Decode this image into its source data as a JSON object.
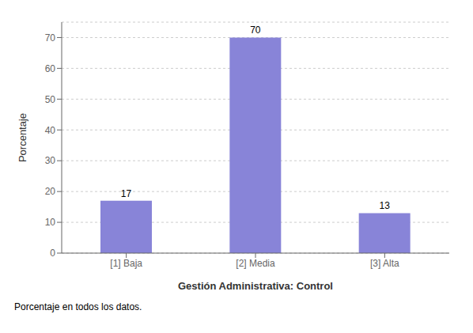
{
  "chart_data": {
    "type": "bar",
    "categories": [
      "[1] Baja",
      "[2] Media",
      "[3] Alta"
    ],
    "values": [
      17,
      70,
      13
    ],
    "color": "#8884d8",
    "xlabel": "Gestión Administrativa: Control",
    "ylabel": "Porcentaje",
    "annotations": [
      "Porcentaje en todos los datos."
    ],
    "ylim": [
      0,
      75
    ],
    "yticks": [
      0,
      10,
      20,
      30,
      40,
      50,
      60,
      70
    ],
    "grid": true,
    "data_labels": true
  }
}
